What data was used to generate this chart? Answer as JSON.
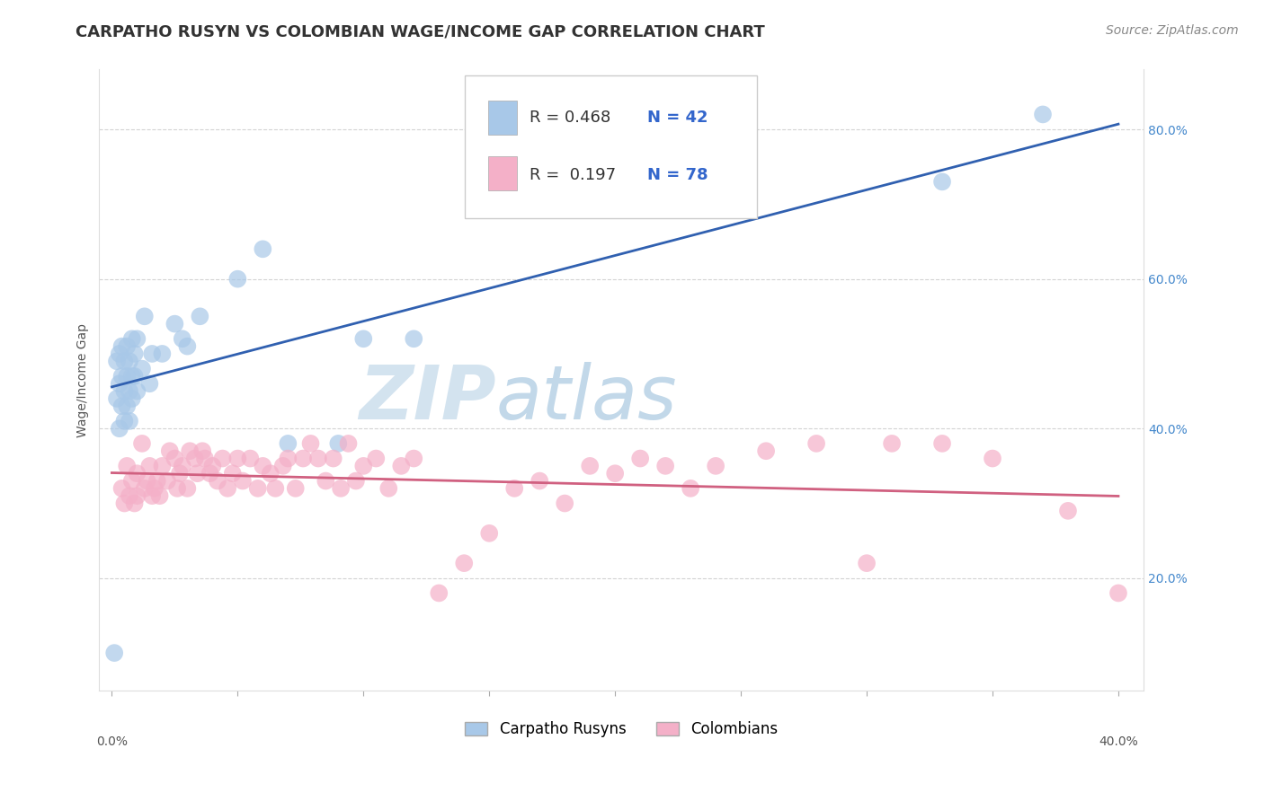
{
  "title": "CARPATHO RUSYN VS COLOMBIAN WAGE/INCOME GAP CORRELATION CHART",
  "source": "Source: ZipAtlas.com",
  "ylabel": "Wage/Income Gap",
  "xlim": [
    -0.005,
    0.41
  ],
  "ylim": [
    0.05,
    0.88
  ],
  "blue_R": 0.468,
  "blue_N": 42,
  "pink_R": 0.197,
  "pink_N": 78,
  "blue_color": "#a8c8e8",
  "pink_color": "#f4b0c8",
  "blue_line_color": "#3060b0",
  "pink_line_color": "#d06080",
  "watermark_zip": "ZIP",
  "watermark_atlas": "atlas",
  "background_color": "#ffffff",
  "grid_color": "#c8c8c8",
  "legend_label_blue": "Carpatho Rusyns",
  "legend_label_pink": "Colombians",
  "blue_points_x": [
    0.001,
    0.002,
    0.002,
    0.003,
    0.003,
    0.003,
    0.004,
    0.004,
    0.004,
    0.005,
    0.005,
    0.005,
    0.006,
    0.006,
    0.006,
    0.007,
    0.007,
    0.007,
    0.008,
    0.008,
    0.008,
    0.009,
    0.009,
    0.01,
    0.01,
    0.012,
    0.013,
    0.015,
    0.016,
    0.02,
    0.025,
    0.028,
    0.03,
    0.035,
    0.05,
    0.06,
    0.07,
    0.09,
    0.1,
    0.12,
    0.33,
    0.37
  ],
  "blue_points_y": [
    0.1,
    0.44,
    0.49,
    0.4,
    0.46,
    0.5,
    0.43,
    0.47,
    0.51,
    0.41,
    0.45,
    0.49,
    0.43,
    0.47,
    0.51,
    0.41,
    0.45,
    0.49,
    0.44,
    0.47,
    0.52,
    0.47,
    0.5,
    0.45,
    0.52,
    0.48,
    0.55,
    0.46,
    0.5,
    0.5,
    0.54,
    0.52,
    0.51,
    0.55,
    0.6,
    0.64,
    0.38,
    0.38,
    0.52,
    0.52,
    0.73,
    0.82
  ],
  "pink_points_x": [
    0.004,
    0.005,
    0.006,
    0.007,
    0.008,
    0.009,
    0.01,
    0.01,
    0.012,
    0.013,
    0.014,
    0.015,
    0.016,
    0.017,
    0.018,
    0.019,
    0.02,
    0.022,
    0.023,
    0.025,
    0.026,
    0.027,
    0.028,
    0.03,
    0.031,
    0.033,
    0.034,
    0.036,
    0.037,
    0.039,
    0.04,
    0.042,
    0.044,
    0.046,
    0.048,
    0.05,
    0.052,
    0.055,
    0.058,
    0.06,
    0.063,
    0.065,
    0.068,
    0.07,
    0.073,
    0.076,
    0.079,
    0.082,
    0.085,
    0.088,
    0.091,
    0.094,
    0.097,
    0.1,
    0.105,
    0.11,
    0.115,
    0.12,
    0.13,
    0.14,
    0.15,
    0.16,
    0.17,
    0.18,
    0.19,
    0.2,
    0.21,
    0.22,
    0.23,
    0.24,
    0.26,
    0.28,
    0.3,
    0.31,
    0.33,
    0.35,
    0.38,
    0.4
  ],
  "pink_points_y": [
    0.32,
    0.3,
    0.35,
    0.31,
    0.33,
    0.3,
    0.34,
    0.31,
    0.38,
    0.32,
    0.33,
    0.35,
    0.31,
    0.32,
    0.33,
    0.31,
    0.35,
    0.33,
    0.37,
    0.36,
    0.32,
    0.34,
    0.35,
    0.32,
    0.37,
    0.36,
    0.34,
    0.37,
    0.36,
    0.34,
    0.35,
    0.33,
    0.36,
    0.32,
    0.34,
    0.36,
    0.33,
    0.36,
    0.32,
    0.35,
    0.34,
    0.32,
    0.35,
    0.36,
    0.32,
    0.36,
    0.38,
    0.36,
    0.33,
    0.36,
    0.32,
    0.38,
    0.33,
    0.35,
    0.36,
    0.32,
    0.35,
    0.36,
    0.18,
    0.22,
    0.26,
    0.32,
    0.33,
    0.3,
    0.35,
    0.34,
    0.36,
    0.35,
    0.32,
    0.35,
    0.37,
    0.38,
    0.22,
    0.38,
    0.38,
    0.36,
    0.29,
    0.18
  ],
  "title_fontsize": 13,
  "axis_label_fontsize": 10,
  "tick_fontsize": 10,
  "source_fontsize": 10,
  "ytick_positions": [
    0.2,
    0.4,
    0.6,
    0.8
  ],
  "ytick_labels": [
    "20.0%",
    "40.0%",
    "60.0%",
    "80.0%"
  ],
  "xtick_positions": [
    0.0,
    0.4
  ],
  "xtick_labels": [
    "0.0%",
    "40.0%"
  ]
}
